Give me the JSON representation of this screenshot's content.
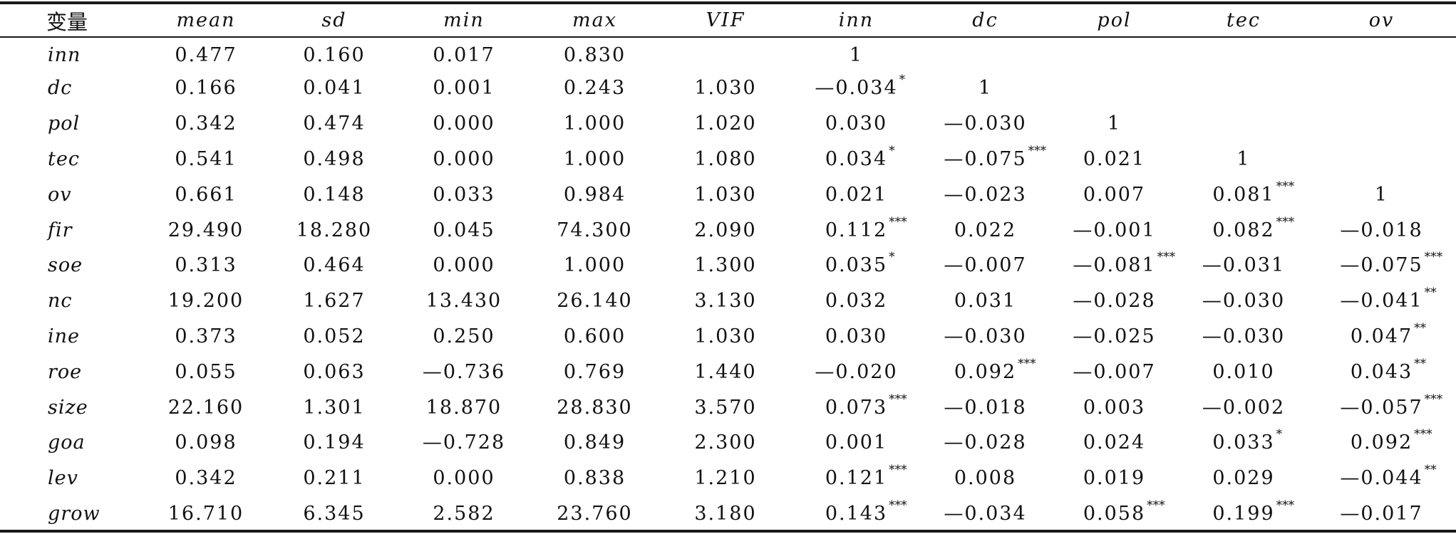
{
  "table": {
    "headers": [
      "变量",
      "mean",
      "sd",
      "min",
      "max",
      "VIF",
      "inn",
      "dc",
      "pol",
      "tec",
      "ov"
    ],
    "rows": [
      {
        "var": "inn",
        "cells": [
          [
            "0.477",
            ""
          ],
          [
            "0.160",
            ""
          ],
          [
            "0.017",
            ""
          ],
          [
            "0.830",
            ""
          ],
          [
            "",
            ""
          ],
          [
            "1",
            ""
          ],
          [
            "",
            ""
          ],
          [
            "",
            ""
          ],
          [
            "",
            ""
          ],
          [
            "",
            ""
          ]
        ]
      },
      {
        "var": "dc",
        "cells": [
          [
            "0.166",
            ""
          ],
          [
            "0.041",
            ""
          ],
          [
            "0.001",
            ""
          ],
          [
            "0.243",
            ""
          ],
          [
            "1.030",
            ""
          ],
          [
            "—0.034",
            "*"
          ],
          [
            "1",
            ""
          ],
          [
            "",
            ""
          ],
          [
            "",
            ""
          ],
          [
            "",
            ""
          ]
        ]
      },
      {
        "var": "pol",
        "cells": [
          [
            "0.342",
            ""
          ],
          [
            "0.474",
            ""
          ],
          [
            "0.000",
            ""
          ],
          [
            "1.000",
            ""
          ],
          [
            "1.020",
            ""
          ],
          [
            "0.030",
            ""
          ],
          [
            "—0.030",
            ""
          ],
          [
            "1",
            ""
          ],
          [
            "",
            ""
          ],
          [
            "",
            ""
          ]
        ]
      },
      {
        "var": "tec",
        "cells": [
          [
            "0.541",
            ""
          ],
          [
            "0.498",
            ""
          ],
          [
            "0.000",
            ""
          ],
          [
            "1.000",
            ""
          ],
          [
            "1.080",
            ""
          ],
          [
            "0.034",
            "*"
          ],
          [
            "—0.075",
            "***"
          ],
          [
            "0.021",
            ""
          ],
          [
            "1",
            ""
          ],
          [
            "",
            ""
          ]
        ]
      },
      {
        "var": "ov",
        "cells": [
          [
            "0.661",
            ""
          ],
          [
            "0.148",
            ""
          ],
          [
            "0.033",
            ""
          ],
          [
            "0.984",
            ""
          ],
          [
            "1.030",
            ""
          ],
          [
            "0.021",
            ""
          ],
          [
            "—0.023",
            ""
          ],
          [
            "0.007",
            ""
          ],
          [
            "0.081",
            "***"
          ],
          [
            "1",
            ""
          ]
        ]
      },
      {
        "var": "fir",
        "cells": [
          [
            "29.490",
            ""
          ],
          [
            "18.280",
            ""
          ],
          [
            "0.045",
            ""
          ],
          [
            "74.300",
            ""
          ],
          [
            "2.090",
            ""
          ],
          [
            "0.112",
            "***"
          ],
          [
            "0.022",
            ""
          ],
          [
            "—0.001",
            ""
          ],
          [
            "0.082",
            "***"
          ],
          [
            "—0.018",
            ""
          ]
        ]
      },
      {
        "var": "soe",
        "cells": [
          [
            "0.313",
            ""
          ],
          [
            "0.464",
            ""
          ],
          [
            "0.000",
            ""
          ],
          [
            "1.000",
            ""
          ],
          [
            "1.300",
            ""
          ],
          [
            "0.035",
            "*"
          ],
          [
            "—0.007",
            ""
          ],
          [
            "—0.081",
            "***"
          ],
          [
            "—0.031",
            ""
          ],
          [
            "—0.075",
            "***"
          ]
        ]
      },
      {
        "var": "nc",
        "cells": [
          [
            "19.200",
            ""
          ],
          [
            "1.627",
            ""
          ],
          [
            "13.430",
            ""
          ],
          [
            "26.140",
            ""
          ],
          [
            "3.130",
            ""
          ],
          [
            "0.032",
            ""
          ],
          [
            "0.031",
            ""
          ],
          [
            "—0.028",
            ""
          ],
          [
            "—0.030",
            ""
          ],
          [
            "—0.041",
            "**"
          ]
        ]
      },
      {
        "var": "ine",
        "cells": [
          [
            "0.373",
            ""
          ],
          [
            "0.052",
            ""
          ],
          [
            "0.250",
            ""
          ],
          [
            "0.600",
            ""
          ],
          [
            "1.030",
            ""
          ],
          [
            "0.030",
            ""
          ],
          [
            "—0.030",
            ""
          ],
          [
            "—0.025",
            ""
          ],
          [
            "—0.030",
            ""
          ],
          [
            "0.047",
            "**"
          ]
        ]
      },
      {
        "var": "roe",
        "cells": [
          [
            "0.055",
            ""
          ],
          [
            "0.063",
            ""
          ],
          [
            "—0.736",
            ""
          ],
          [
            "0.769",
            ""
          ],
          [
            "1.440",
            ""
          ],
          [
            "—0.020",
            ""
          ],
          [
            "0.092",
            "***"
          ],
          [
            "—0.007",
            ""
          ],
          [
            "0.010",
            ""
          ],
          [
            "0.043",
            "**"
          ]
        ]
      },
      {
        "var": "size",
        "cells": [
          [
            "22.160",
            ""
          ],
          [
            "1.301",
            ""
          ],
          [
            "18.870",
            ""
          ],
          [
            "28.830",
            ""
          ],
          [
            "3.570",
            ""
          ],
          [
            "0.073",
            "***"
          ],
          [
            "—0.018",
            ""
          ],
          [
            "0.003",
            ""
          ],
          [
            "—0.002",
            ""
          ],
          [
            "—0.057",
            "***"
          ]
        ]
      },
      {
        "var": "goa",
        "cells": [
          [
            "0.098",
            ""
          ],
          [
            "0.194",
            ""
          ],
          [
            "—0.728",
            ""
          ],
          [
            "0.849",
            ""
          ],
          [
            "2.300",
            ""
          ],
          [
            "0.001",
            ""
          ],
          [
            "—0.028",
            ""
          ],
          [
            "0.024",
            ""
          ],
          [
            "0.033",
            "*"
          ],
          [
            "0.092",
            "***"
          ]
        ]
      },
      {
        "var": "lev",
        "cells": [
          [
            "0.342",
            ""
          ],
          [
            "0.211",
            ""
          ],
          [
            "0.000",
            ""
          ],
          [
            "0.838",
            ""
          ],
          [
            "1.210",
            ""
          ],
          [
            "0.121",
            "***"
          ],
          [
            "0.008",
            ""
          ],
          [
            "0.019",
            ""
          ],
          [
            "0.029",
            ""
          ],
          [
            "—0.044",
            "**"
          ]
        ]
      },
      {
        "var": "grow",
        "cells": [
          [
            "16.710",
            ""
          ],
          [
            "6.345",
            ""
          ],
          [
            "2.582",
            ""
          ],
          [
            "23.760",
            ""
          ],
          [
            "3.180",
            ""
          ],
          [
            "0.143",
            "***"
          ],
          [
            "—0.034",
            ""
          ],
          [
            "0.058",
            "***"
          ],
          [
            "0.199",
            "***"
          ],
          [
            "—0.017",
            ""
          ]
        ]
      }
    ]
  }
}
